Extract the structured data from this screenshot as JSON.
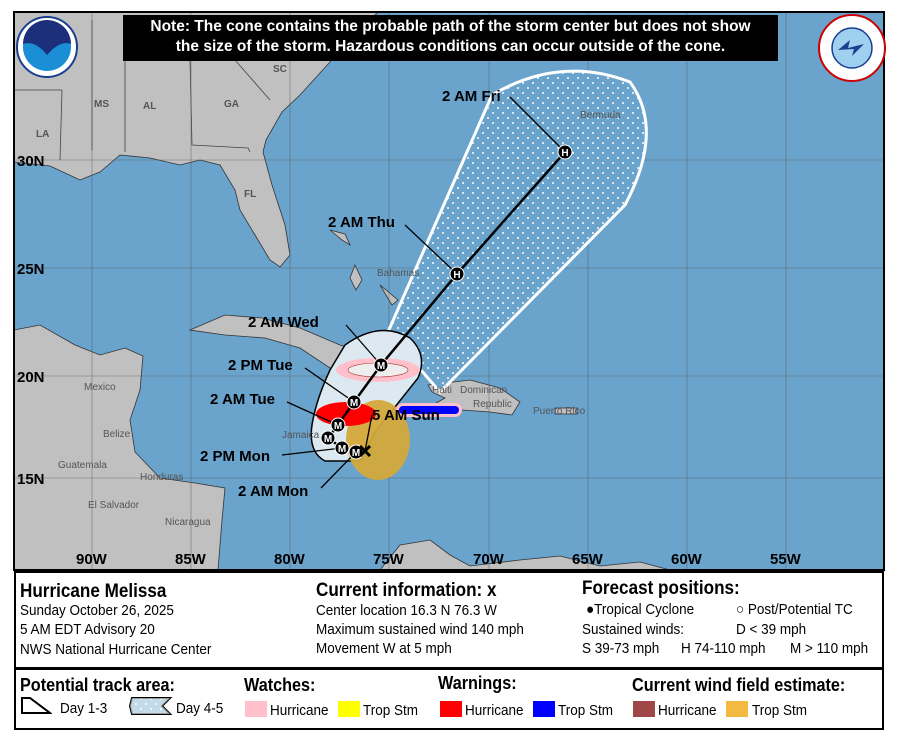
{
  "note": {
    "line1": "Note: The cone contains the probable path of the storm center but does not show",
    "line2": "the size of the storm. Hazardous conditions can occur outside of the cone."
  },
  "logos": {
    "noara": "NOAA",
    "nws": "NATIONAL WEATHER SERVICE"
  },
  "map": {
    "colors": {
      "ocean": "#6aa3cc",
      "land": "#c0c0c0",
      "cone_day13": "#dde9f1",
      "hurricane_watch": "#ffc0cb",
      "ts_watch": "#ffff00",
      "hurricane_warning": "#ff0000",
      "ts_warning": "#0000ff",
      "wind_hurricane": "#a04848",
      "wind_ts": "#f4b941"
    },
    "lon_labels": [
      "90W",
      "85W",
      "80W",
      "75W",
      "70W",
      "65W",
      "60W",
      "55W"
    ],
    "lat_labels": [
      "30N",
      "25N",
      "20N",
      "15N"
    ],
    "place_labels": [
      "SC",
      "MS",
      "AL",
      "GA",
      "LA",
      "FL",
      "Bahamas",
      "Bermuda",
      "Mexico",
      "Belize",
      "Guatemala",
      "Honduras",
      "El Salvador",
      "Nicaragua",
      "Haiti",
      "Dominican",
      "Republic",
      "Puerto Rico",
      "Jamaica"
    ],
    "track": [
      {
        "time": "5 AM Sun",
        "marker": "x",
        "lat": 16.3,
        "lon": -76.3
      },
      {
        "time": "2 AM Mon",
        "marker": "M"
      },
      {
        "time": "2 PM Mon",
        "marker": "M"
      },
      {
        "time": "",
        "marker": "M"
      },
      {
        "time": "2 AM Tue",
        "marker": "M"
      },
      {
        "time": "2 PM Tue",
        "marker": "M"
      },
      {
        "time": "2 AM Wed",
        "marker": "M"
      },
      {
        "time": "2 AM Thu",
        "marker": "H"
      },
      {
        "time": "2 AM Fri",
        "marker": "H"
      }
    ]
  },
  "info": {
    "storm_name": "Hurricane Melissa",
    "date": "Sunday October 26, 2025",
    "advisory": "5 AM EDT Advisory 20",
    "center": "NWS National Hurricane Center",
    "current_title": "Current information:",
    "current_icon": "x",
    "location": "Center location 16.3 N 76.3 W",
    "max_wind": "Maximum sustained wind 140 mph",
    "movement": "Movement W at 5 mph",
    "forecast_title": "Forecast positions:",
    "tropical_cyclone": "Tropical Cyclone",
    "post_potential": "Post/Potential TC",
    "sustained": "Sustained winds:",
    "d_scale": "D < 39 mph",
    "s_scale": "S 39-73 mph",
    "h_scale": "H 74-110 mph",
    "m_scale": "M > 110 mph"
  },
  "legend": {
    "track_area": "Potential track area:",
    "day13": "Day 1-3",
    "day45": "Day 4-5",
    "watches": "Watches:",
    "warnings": "Warnings:",
    "wind_field": "Current wind field estimate:",
    "hurricane": "Hurricane",
    "trop_stm": "Trop Stm"
  }
}
